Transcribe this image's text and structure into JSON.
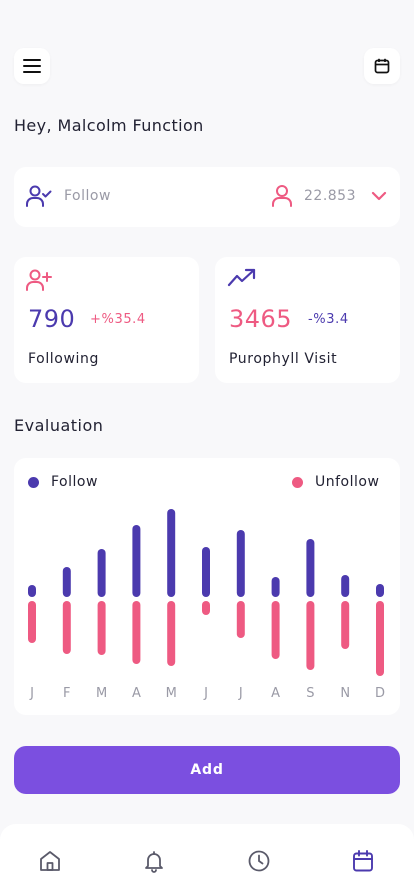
{
  "greeting": "Hey, Malcolm Function",
  "follow_summary": {
    "label": "Follow",
    "value": "22.853"
  },
  "stats": [
    {
      "number": "790",
      "change": "+%35.4",
      "name": "Following",
      "number_color": "#4b3aae",
      "change_color": "#ee5a82"
    },
    {
      "number": "3465",
      "change": "-%3.4",
      "name": "Purophyll Visit",
      "number_color": "#ee5a82",
      "change_color": "#4b3aae"
    }
  ],
  "evaluation": {
    "title": "Evaluation"
  },
  "chart_data": {
    "type": "bar",
    "categories": [
      "J",
      "F",
      "M",
      "A",
      "M",
      "J",
      "J",
      "A",
      "S",
      "N",
      "D"
    ],
    "series": [
      {
        "name": "Follow",
        "color": "#4b3aae",
        "values": [
          12,
          30,
          48,
          72,
          88,
          50,
          67,
          20,
          58,
          22,
          13
        ]
      },
      {
        "name": "Unfollow",
        "color": "#ee5a82",
        "values": [
          42,
          53,
          54,
          63,
          65,
          14,
          37,
          58,
          69,
          48,
          75
        ]
      }
    ]
  },
  "add_button": {
    "label": "Add"
  },
  "colors": {
    "accent": "#7b4fe0",
    "follow": "#4b3aae",
    "unfollow": "#ee5a82",
    "muted": "#9a9aa6"
  },
  "tabbar": {
    "active": "calendar",
    "items": [
      "home-icon",
      "bell-icon",
      "clock-icon",
      "calendar-icon"
    ]
  }
}
